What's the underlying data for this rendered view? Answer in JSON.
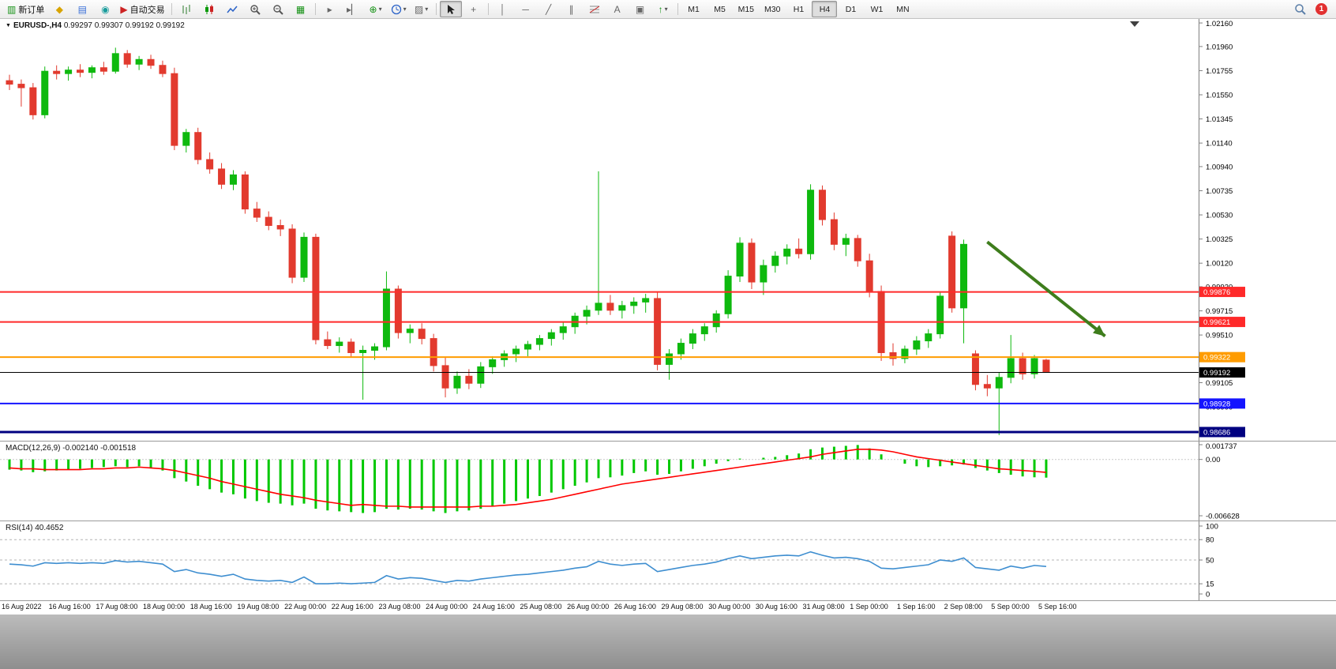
{
  "toolbar": {
    "new_order_label": "新订单",
    "auto_trading_label": "自动交易",
    "timeframes": [
      "M1",
      "M5",
      "M15",
      "M30",
      "H1",
      "H4",
      "D1",
      "W1",
      "MN"
    ],
    "active_timeframe": "H4",
    "notification_count": "1"
  },
  "icons": {
    "window_marker": "▼",
    "new_order": "▥",
    "market_watch": "◆",
    "data_window": "▤",
    "navigator": "◉",
    "auto_play": "▶",
    "tile_windows": "▦",
    "auto_scroll": "▸",
    "chart_shift": "▸▏",
    "indicators": "⊕",
    "templates": "▨",
    "crosshair": "+",
    "vertical_line": "│",
    "horizontal_line": "─",
    "trendline": "╱",
    "channel": "∥",
    "text_tool": "A",
    "label_tool": "▣",
    "arrow_tool": "↑",
    "dropdown": "▾"
  },
  "chart": {
    "title_symbol": "EURUSD-,H4",
    "ohlc_text": "0.99297 0.99307 0.99192 0.99192"
  },
  "chart_data": {
    "type": "candlestick",
    "symbol": "EURUSD-",
    "timeframe": "H4",
    "bull_color": "#0eb90e",
    "bear_color": "#e23a2e",
    "current_ohlc": {
      "open": 0.99297,
      "high": 0.99307,
      "low": 0.99192,
      "close": 0.99192
    },
    "price_range": [
      0.98612,
      1.02194
    ],
    "price_axis_ticks": [
      "1.02160",
      "1.01960",
      "1.01755",
      "1.01550",
      "1.01345",
      "1.01140",
      "1.00940",
      "1.00735",
      "1.00530",
      "1.00325",
      "1.00120",
      "0.99920",
      "0.99715",
      "0.99510",
      "0.99305",
      "0.99105",
      "0.98900",
      "0.98695"
    ],
    "x_label_step": 4,
    "x_labels": [
      "16 Aug 2022",
      "16 Aug 16:00",
      "17 Aug 08:00",
      "18 Aug 00:00",
      "18 Aug 16:00",
      "19 Aug 08:00",
      "22 Aug 00:00",
      "22 Aug 16:00",
      "23 Aug 08:00",
      "24 Aug 00:00",
      "24 Aug 16:00",
      "25 Aug 08:00",
      "26 Aug 00:00",
      "26 Aug 16:00",
      "29 Aug 08:00",
      "30 Aug 00:00",
      "30 Aug 16:00",
      "31 Aug 08:00",
      "1 Sep 00:00",
      "1 Sep 16:00",
      "2 Sep 08:00",
      "5 Sep 00:00",
      "5 Sep 16:00"
    ],
    "candles_ohlc": [
      [
        1.0167,
        1.0172,
        1.0159,
        1.0164
      ],
      [
        1.0164,
        1.0168,
        1.0145,
        1.0161
      ],
      [
        1.0161,
        1.0165,
        1.0134,
        1.0138
      ],
      [
        1.0138,
        1.0179,
        1.0135,
        1.0175
      ],
      [
        1.0175,
        1.018,
        1.0168,
        1.0173
      ],
      [
        1.0173,
        1.0179,
        1.0167,
        1.0176
      ],
      [
        1.0176,
        1.0181,
        1.017,
        1.0174
      ],
      [
        1.0174,
        1.018,
        1.0169,
        1.0178
      ],
      [
        1.0178,
        1.0183,
        1.0172,
        1.0175
      ],
      [
        1.0175,
        1.0195,
        1.0173,
        1.019
      ],
      [
        1.019,
        1.0193,
        1.0178,
        1.0181
      ],
      [
        1.0181,
        1.0188,
        1.0176,
        1.0185
      ],
      [
        1.0185,
        1.0189,
        1.0177,
        1.018
      ],
      [
        1.018,
        1.0184,
        1.017,
        1.0173
      ],
      [
        1.0173,
        1.0178,
        1.0108,
        1.0112
      ],
      [
        1.0112,
        1.0126,
        1.0106,
        1.0123
      ],
      [
        1.0123,
        1.0127,
        1.0096,
        1.01
      ],
      [
        1.01,
        1.0106,
        1.0088,
        1.0092
      ],
      [
        1.0092,
        1.0097,
        1.0075,
        1.0079
      ],
      [
        1.0079,
        1.0091,
        1.0074,
        1.0087
      ],
      [
        1.0087,
        1.009,
        1.0054,
        1.0058
      ],
      [
        1.0058,
        1.0064,
        1.0047,
        1.0051
      ],
      [
        1.0051,
        1.0056,
        1.004,
        1.0044
      ],
      [
        1.0044,
        1.0049,
        1.0035,
        1.0041
      ],
      [
        1.0041,
        1.0045,
        0.9995,
        1.0
      ],
      [
        1.0,
        1.0038,
        0.9996,
        1.0034
      ],
      [
        1.0034,
        1.0037,
        0.9943,
        0.9947
      ],
      [
        0.9947,
        0.9954,
        0.9939,
        0.9942
      ],
      [
        0.9942,
        0.9949,
        0.9936,
        0.9945
      ],
      [
        0.9945,
        0.9948,
        0.9932,
        0.9936
      ],
      [
        0.9936,
        0.9942,
        0.9896,
        0.9938
      ],
      [
        0.9938,
        0.9944,
        0.993,
        0.9941
      ],
      [
        0.9941,
        1.0005,
        0.9938,
        0.999
      ],
      [
        0.999,
        0.9993,
        0.9948,
        0.9953
      ],
      [
        0.9953,
        0.996,
        0.9944,
        0.9956
      ],
      [
        0.9956,
        0.9961,
        0.9943,
        0.9948
      ],
      [
        0.9948,
        0.9952,
        0.992,
        0.9925
      ],
      [
        0.9925,
        0.9932,
        0.9898,
        0.9906
      ],
      [
        0.9906,
        0.992,
        0.9901,
        0.9916
      ],
      [
        0.9916,
        0.9922,
        0.9905,
        0.991
      ],
      [
        0.991,
        0.9928,
        0.9906,
        0.9924
      ],
      [
        0.9924,
        0.9933,
        0.9918,
        0.993
      ],
      [
        0.993,
        0.9938,
        0.9924,
        0.9935
      ],
      [
        0.9935,
        0.9942,
        0.9928,
        0.9939
      ],
      [
        0.9939,
        0.9946,
        0.9933,
        0.9943
      ],
      [
        0.9943,
        0.9951,
        0.9938,
        0.9948
      ],
      [
        0.9948,
        0.9956,
        0.9942,
        0.9953
      ],
      [
        0.9953,
        0.9962,
        0.9947,
        0.9958
      ],
      [
        0.9958,
        0.997,
        0.9952,
        0.9967
      ],
      [
        0.9967,
        0.9976,
        0.996,
        0.9972
      ],
      [
        0.9972,
        1.009,
        0.9968,
        0.9978
      ],
      [
        0.9978,
        0.9985,
        0.9968,
        0.9972
      ],
      [
        0.9972,
        0.998,
        0.9965,
        0.9976
      ],
      [
        0.9976,
        0.9983,
        0.9969,
        0.9979
      ],
      [
        0.9979,
        0.9986,
        0.997,
        0.9982
      ],
      [
        0.9982,
        0.9987,
        0.9921,
        0.9926
      ],
      [
        0.9926,
        0.9939,
        0.9913,
        0.9935
      ],
      [
        0.9935,
        0.9948,
        0.993,
        0.9944
      ],
      [
        0.9944,
        0.9956,
        0.9939,
        0.9952
      ],
      [
        0.9952,
        0.9961,
        0.9946,
        0.9958
      ],
      [
        0.9958,
        0.9972,
        0.9953,
        0.9969
      ],
      [
        0.9969,
        1.0006,
        0.9965,
        1.0001
      ],
      [
        1.0001,
        1.0034,
        0.9996,
        1.0029
      ],
      [
        1.0029,
        1.0033,
        0.999,
        0.9996
      ],
      [
        0.9996,
        1.0015,
        0.9985,
        1.001
      ],
      [
        1.001,
        1.0022,
        1.0004,
        1.0018
      ],
      [
        1.0018,
        1.0028,
        1.0011,
        1.0024
      ],
      [
        1.0024,
        1.0033,
        1.0016,
        1.002
      ],
      [
        1.002,
        1.0079,
        1.0015,
        1.0074
      ],
      [
        1.0074,
        1.0078,
        1.0044,
        1.0049
      ],
      [
        1.0049,
        1.0055,
        1.0023,
        1.0028
      ],
      [
        1.0028,
        1.0037,
        1.0018,
        1.0033
      ],
      [
        1.0033,
        1.0036,
        1.0009,
        1.0014
      ],
      [
        1.0014,
        1.002,
        0.9983,
        0.9988
      ],
      [
        0.9988,
        0.9993,
        0.9929,
        0.9936
      ],
      [
        0.9936,
        0.9944,
        0.9925,
        0.9931
      ],
      [
        0.9931,
        0.9942,
        0.9927,
        0.9939
      ],
      [
        0.9939,
        0.995,
        0.9934,
        0.9946
      ],
      [
        0.9946,
        0.9956,
        0.994,
        0.9952
      ],
      [
        0.9952,
        0.9988,
        0.9948,
        0.9984
      ],
      [
        1.0035,
        1.0039,
        0.997,
        0.9974
      ],
      [
        0.9974,
        1.0032,
        0.9944,
        1.0028
      ],
      [
        0.9935,
        0.9938,
        0.9904,
        0.9909
      ],
      [
        0.9909,
        0.9917,
        0.9899,
        0.9906
      ],
      [
        0.9906,
        0.9919,
        0.9866,
        0.9915
      ],
      [
        0.9915,
        0.9951,
        0.991,
        0.9931
      ],
      [
        0.9931,
        0.9936,
        0.9913,
        0.9918
      ],
      [
        0.9918,
        0.9934,
        0.9914,
        0.9931
      ],
      [
        0.99297,
        0.99307,
        0.99192,
        0.99192
      ]
    ],
    "hlines": [
      {
        "price": 0.99876,
        "color": "#ff2a2a",
        "width": 2,
        "label": "0.99876"
      },
      {
        "price": 0.99621,
        "color": "#ff2a2a",
        "width": 2,
        "label": "0.99621"
      },
      {
        "price": 0.99322,
        "color": "#ff9c00",
        "width": 2,
        "label": "0.99322"
      },
      {
        "price": 0.99192,
        "color": "#000000",
        "width": 1,
        "label": "0.99192"
      },
      {
        "price": 0.98928,
        "color": "#1414ff",
        "width": 2,
        "label": "0.98928"
      },
      {
        "price": 0.98686,
        "color": "#000080",
        "width": 3,
        "label": "0.98686"
      }
    ],
    "trend_arrow": {
      "x1_index": 83,
      "price1": 1.003,
      "x2_index": 93,
      "price2": 0.995,
      "color": "#3e7d1c"
    },
    "macd": {
      "label": "MACD(12,26,9)",
      "value_main": "-0.002140",
      "value_signal": "-0.001518",
      "hist_color": "#00c800",
      "signal_color": "#ff0000",
      "axis": {
        "max": 0.001737,
        "min": -0.006628,
        "ticks": [
          "0.001737",
          "0.00",
          "-0.006628"
        ]
      },
      "histogram": [
        -0.0012,
        -0.0013,
        -0.0015,
        -0.0014,
        -0.0013,
        -0.0012,
        -0.0011,
        -0.001,
        -0.0009,
        -0.0008,
        -0.0009,
        -0.0008,
        -0.001,
        -0.0013,
        -0.0022,
        -0.0026,
        -0.0031,
        -0.0035,
        -0.0039,
        -0.0041,
        -0.0046,
        -0.0049,
        -0.0051,
        -0.0052,
        -0.0054,
        -0.0052,
        -0.0058,
        -0.006,
        -0.0061,
        -0.0062,
        -0.0063,
        -0.0062,
        -0.0058,
        -0.0059,
        -0.0058,
        -0.0059,
        -0.0061,
        -0.0063,
        -0.0061,
        -0.006,
        -0.0058,
        -0.0055,
        -0.0052,
        -0.0049,
        -0.0046,
        -0.0043,
        -0.0039,
        -0.0035,
        -0.0031,
        -0.0027,
        -0.0022,
        -0.0021,
        -0.0019,
        -0.0016,
        -0.0014,
        -0.0018,
        -0.0017,
        -0.0014,
        -0.0011,
        -0.0008,
        -0.0005,
        -0.0002,
        0.0001,
        0.0,
        0.0002,
        0.0003,
        0.0005,
        0.0007,
        0.0012,
        0.0014,
        0.0015,
        0.0016,
        0.0017,
        0.0013,
        0.0006,
        0.0,
        -0.0005,
        -0.0008,
        -0.0009,
        -0.0008,
        -0.0007,
        -0.0006,
        -0.001,
        -0.0013,
        -0.0016,
        -0.0018,
        -0.002,
        -0.0021,
        -0.00214
      ],
      "signal": [
        -0.001,
        -0.0011,
        -0.0011,
        -0.0012,
        -0.0012,
        -0.0012,
        -0.0012,
        -0.0011,
        -0.0011,
        -0.001,
        -0.001,
        -0.0009,
        -0.001,
        -0.0011,
        -0.0013,
        -0.0016,
        -0.0019,
        -0.0022,
        -0.0026,
        -0.0029,
        -0.0032,
        -0.0035,
        -0.0038,
        -0.0041,
        -0.0043,
        -0.0045,
        -0.0048,
        -0.005,
        -0.0052,
        -0.0054,
        -0.0053,
        -0.0054,
        -0.0055,
        -0.0055,
        -0.0056,
        -0.0056,
        -0.0056,
        -0.0056,
        -0.0056,
        -0.0056,
        -0.0055,
        -0.0055,
        -0.0054,
        -0.0053,
        -0.0051,
        -0.0049,
        -0.0047,
        -0.0044,
        -0.0041,
        -0.0038,
        -0.0035,
        -0.0032,
        -0.0029,
        -0.0027,
        -0.0025,
        -0.0023,
        -0.0021,
        -0.0019,
        -0.0017,
        -0.0015,
        -0.0013,
        -0.0011,
        -0.0009,
        -0.0007,
        -0.0005,
        -0.0003,
        -0.0001,
        0.0001,
        0.0003,
        0.0006,
        0.0008,
        0.001,
        0.0012,
        0.0012,
        0.0011,
        0.0009,
        0.0006,
        0.0003,
        0.0001,
        -0.0001,
        -0.0003,
        -0.0005,
        -0.0007,
        -0.0009,
        -0.0011,
        -0.0012,
        -0.0013,
        -0.0014,
        -0.001518
      ]
    },
    "rsi": {
      "label": "RSI(14)",
      "value": "40.4652",
      "line_color": "#3e8ed0",
      "range": [
        0,
        100
      ],
      "levels": [
        80,
        50,
        15
      ],
      "axis_ticks": [
        100,
        80,
        50,
        15,
        0
      ],
      "values": [
        44,
        43,
        41,
        46,
        45,
        46,
        45,
        46,
        45,
        49,
        47,
        48,
        46,
        44,
        33,
        36,
        31,
        29,
        26,
        29,
        22,
        20,
        19,
        20,
        17,
        25,
        15,
        15,
        16,
        15,
        16,
        17,
        27,
        22,
        24,
        23,
        20,
        17,
        20,
        19,
        22,
        24,
        26,
        28,
        29,
        31,
        33,
        35,
        38,
        40,
        48,
        44,
        42,
        44,
        45,
        33,
        36,
        39,
        42,
        44,
        47,
        52,
        56,
        52,
        54,
        56,
        57,
        56,
        62,
        57,
        53,
        54,
        52,
        48,
        38,
        37,
        39,
        41,
        43,
        50,
        48,
        53,
        39,
        37,
        35,
        41,
        38,
        42,
        40.4652
      ]
    }
  }
}
